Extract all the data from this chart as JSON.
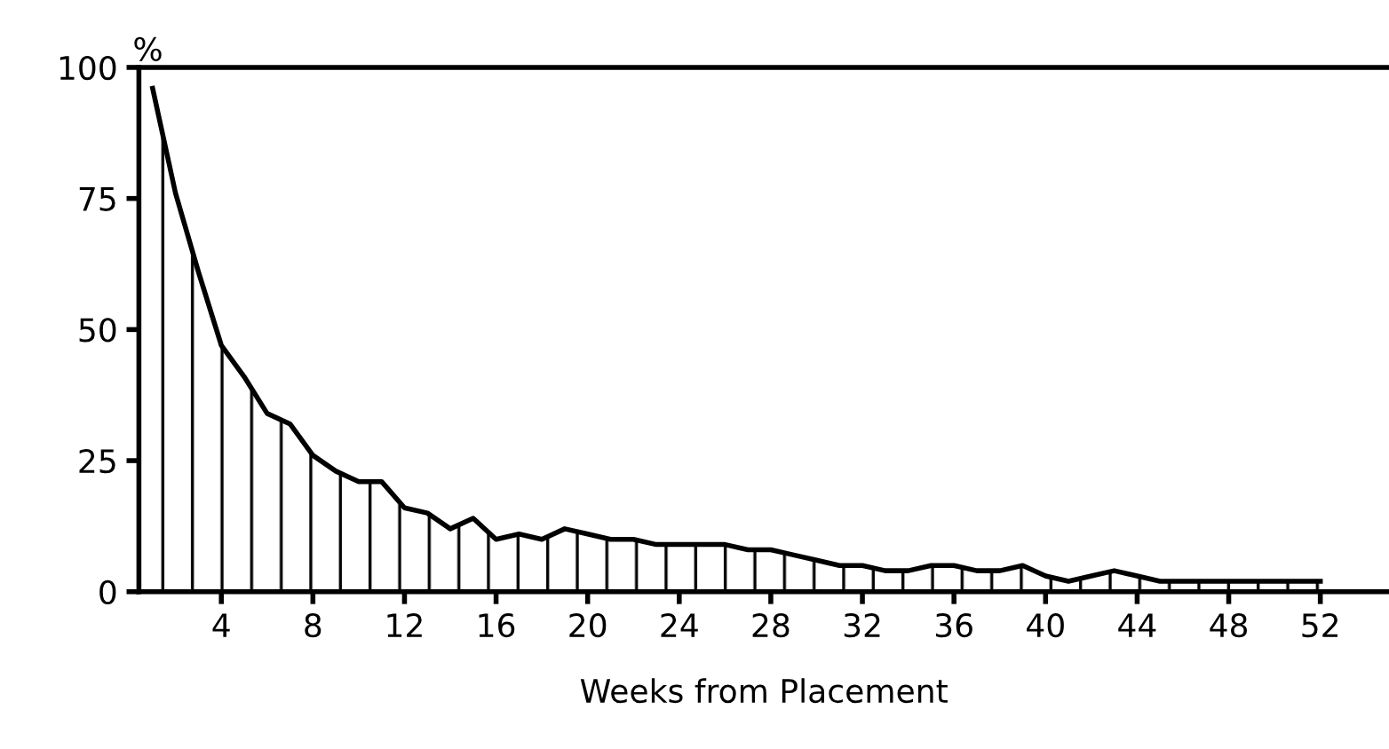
{
  "chart_data": {
    "type": "area",
    "xlabel": "Weeks from Placement",
    "ylabel": "%",
    "x": [
      1,
      2,
      3,
      4,
      5,
      6,
      7,
      8,
      9,
      10,
      11,
      12,
      13,
      14,
      15,
      16,
      17,
      18,
      19,
      20,
      21,
      22,
      23,
      24,
      25,
      26,
      27,
      28,
      29,
      30,
      31,
      32,
      33,
      34,
      35,
      36,
      37,
      38,
      39,
      40,
      41,
      42,
      43,
      44,
      45,
      46,
      47,
      48,
      49,
      50,
      51,
      52
    ],
    "series": [
      {
        "color": "#000000",
        "values": [
          96,
          76,
          61,
          47,
          41,
          34,
          32,
          26,
          23,
          21,
          21,
          16,
          15,
          12,
          14,
          10,
          11,
          10,
          12,
          11,
          10,
          10,
          9,
          9,
          9,
          9,
          8,
          8,
          7,
          6,
          5,
          5,
          4,
          4,
          5,
          5,
          4,
          4,
          5,
          3,
          2,
          3,
          4,
          3,
          2,
          2,
          2,
          2,
          2,
          2,
          2,
          2
        ]
      }
    ],
    "xlim": [
      0.4,
      55
    ],
    "xticks": [
      4,
      8,
      12,
      16,
      20,
      24,
      28,
      32,
      36,
      40,
      44,
      48,
      52
    ],
    "ylim": [
      0,
      100
    ],
    "yticks": [
      0,
      25,
      50,
      75,
      100
    ],
    "grid": false,
    "legend": false
  }
}
